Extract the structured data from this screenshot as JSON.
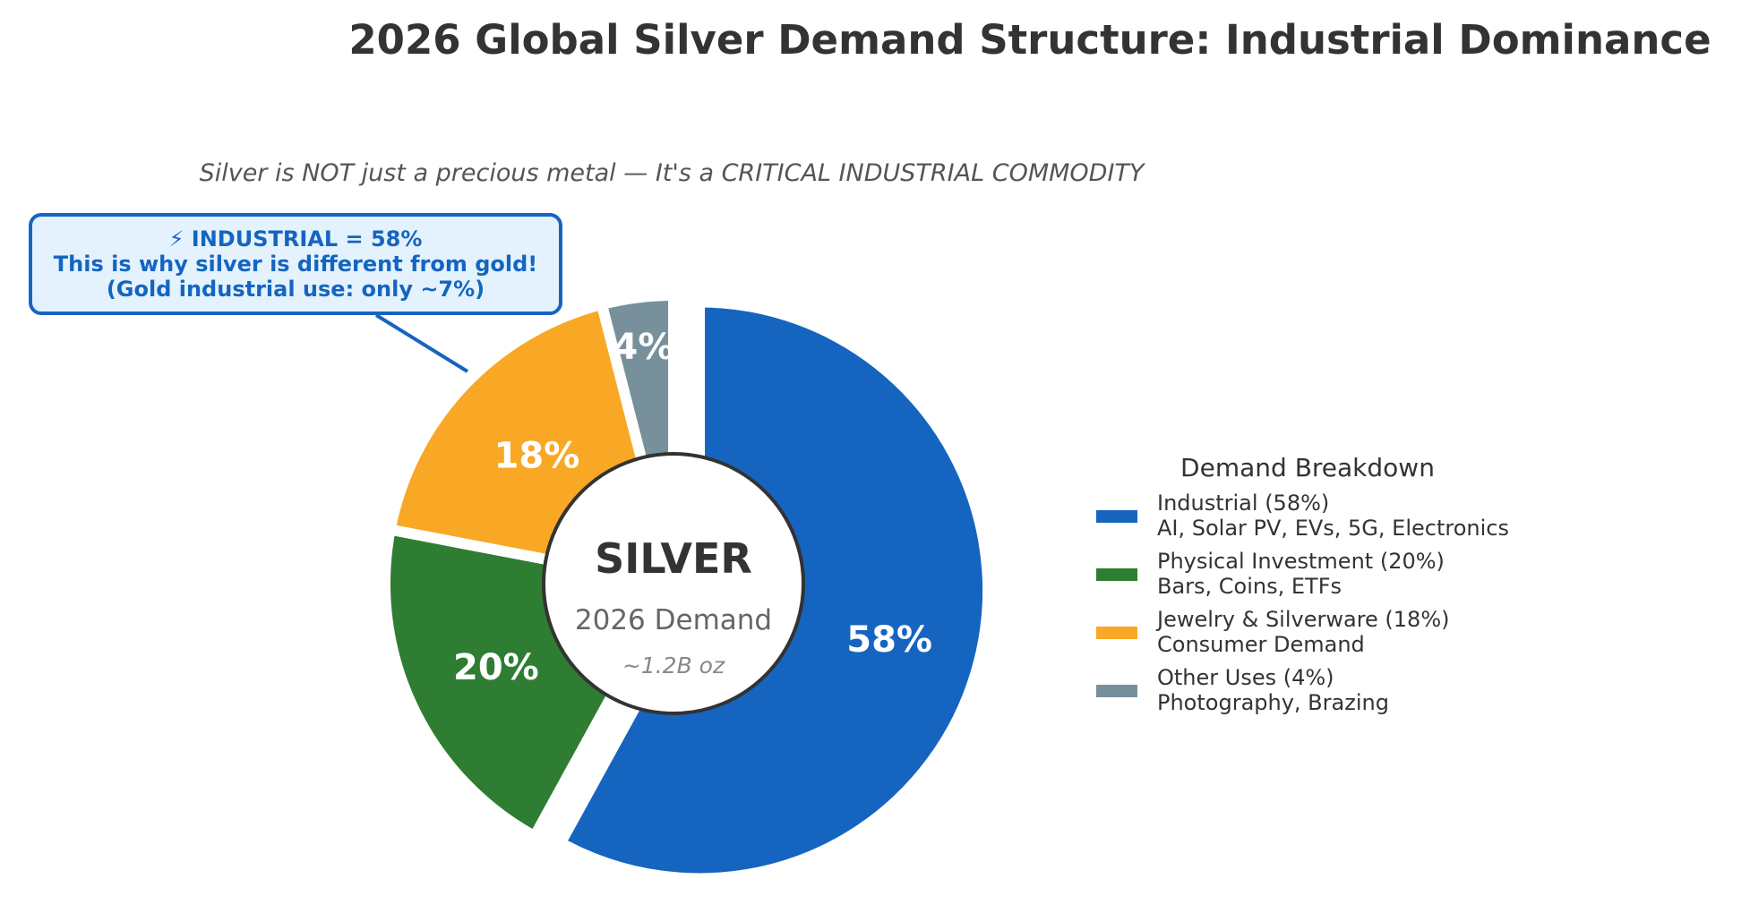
{
  "chart_data": {
    "type": "pie",
    "title": "2026 Global Silver Demand Structure: Industrial Dominance",
    "subtitle": "Silver is NOT just a precious metal — It's a CRITICAL INDUSTRIAL COMMODITY",
    "center": {
      "main": "SILVER",
      "sub": "2026 Demand",
      "note": "~1.2B oz"
    },
    "slices": [
      {
        "name": "Industrial",
        "value": 58,
        "label": "58%",
        "color": "#1565c0",
        "legend_line1": "Industrial (58%)",
        "legend_line2": "AI, Solar PV, EVs, 5G, Electronics"
      },
      {
        "name": "Physical Investment",
        "value": 20,
        "label": "20%",
        "color": "#2e7d32",
        "legend_line1": "Physical Investment (20%)",
        "legend_line2": "Bars, Coins, ETFs"
      },
      {
        "name": "Jewelry & Silverware",
        "value": 18,
        "label": "18%",
        "color": "#f9a825",
        "legend_line1": "Jewelry & Silverware (18%)",
        "legend_line2": "Consumer Demand"
      },
      {
        "name": "Other Uses",
        "value": 4,
        "label": "4%",
        "color": "#78909c",
        "legend_line1": "Other Uses (4%)",
        "legend_line2": "Photography, Brazing"
      }
    ],
    "legend": {
      "title": "Demand Breakdown",
      "placement": "right"
    },
    "callout": {
      "line1": "⚡ INDUSTRIAL = 58%",
      "line2": "This is why silver is different from gold!",
      "line3": "(Gold industrial use: only ~7%)",
      "color": "#1565c0",
      "fill": "#e3f2fd"
    }
  }
}
